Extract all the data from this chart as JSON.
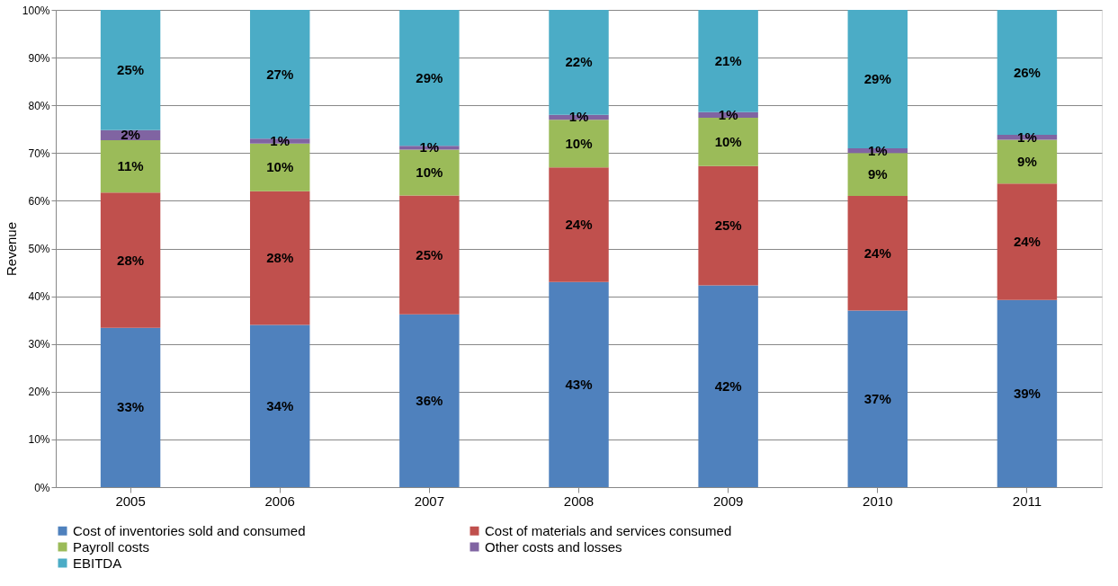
{
  "chart_data": {
    "type": "bar",
    "stacked": true,
    "ylabel": "Revenue",
    "categories": [
      "2005",
      "2006",
      "2007",
      "2008",
      "2009",
      "2010",
      "2011"
    ],
    "series": [
      {
        "name": "Cost of inventories sold and consumed",
        "color": "#4f81bd",
        "values": [
          33.4,
          34,
          36.2,
          43,
          42.3,
          37,
          39.2
        ],
        "value_labels": [
          "33%",
          "34%",
          "36%",
          "43%",
          "42%",
          "37%",
          "39%"
        ]
      },
      {
        "name": "Cost of materials and services consumed",
        "color": "#c0504d",
        "values": [
          28.3,
          28,
          24.9,
          24,
          25,
          24,
          24.4
        ],
        "value_labels": [
          "28%",
          "28%",
          "25%",
          "24%",
          "25%",
          "24%",
          "24%"
        ]
      },
      {
        "name": "Payroll costs",
        "color": "#9bbb59",
        "values": [
          11,
          10,
          9.6,
          10,
          10.1,
          9,
          9.2
        ],
        "value_labels": [
          "11%",
          "10%",
          "10%",
          "10%",
          "10%",
          "9%",
          "9%"
        ]
      },
      {
        "name": "Other costs and losses",
        "color": "#8064a2",
        "values": [
          2.1,
          1,
          0.8,
          1,
          1.2,
          1,
          1
        ],
        "value_labels": [
          "2%",
          "1%",
          "1%",
          "1%",
          "1%",
          "1%",
          "1%"
        ]
      },
      {
        "name": "EBITDA",
        "color": "#4bacc6",
        "values": [
          25.2,
          27,
          28.5,
          22,
          21.4,
          29,
          26.2
        ],
        "value_labels": [
          "25%",
          "27%",
          "29%",
          "22%",
          "21%",
          "29%",
          "26%"
        ]
      }
    ],
    "ylim": [
      0,
      100
    ],
    "yticks": [
      {
        "value": 0,
        "label": "0%"
      },
      {
        "value": 10,
        "label": "10%"
      },
      {
        "value": 20,
        "label": "20%"
      },
      {
        "value": 30,
        "label": "30%"
      },
      {
        "value": 40,
        "label": "40%"
      },
      {
        "value": 50,
        "label": "50%"
      },
      {
        "value": 60,
        "label": "60%"
      },
      {
        "value": 70,
        "label": "70%"
      },
      {
        "value": 80,
        "label": "80%"
      },
      {
        "value": 90,
        "label": "90%"
      },
      {
        "value": 100,
        "label": "100%"
      }
    ],
    "grid": "y",
    "legend": "bottom"
  }
}
